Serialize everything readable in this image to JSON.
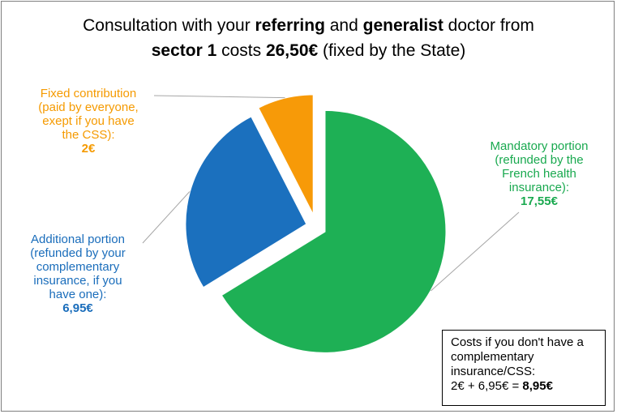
{
  "title": {
    "part1": "Consultation with your ",
    "b1": "referring",
    "part2": " and ",
    "b2": "generalist",
    "part3": " doctor from",
    "b3": "sector 1",
    "part4": " costs ",
    "b4": "26,50€",
    "part5": " (fixed by the State)"
  },
  "chart_data": {
    "type": "pie",
    "total": 26.5,
    "slices": [
      {
        "id": "mandatory",
        "value": 17.55,
        "color": "#1eb055",
        "label_lines": [
          "Mandatory portion",
          "(refunded by the",
          "French health",
          "insurance):"
        ],
        "value_label": "17,55€",
        "label_color": "#19a94f"
      },
      {
        "id": "additional",
        "value": 6.95,
        "color": "#1b70be",
        "label_lines": [
          "Additional portion",
          "(refunded by your",
          "complementary",
          "insurance, if you",
          "have one):"
        ],
        "value_label": "6,95€",
        "label_color": "#1a6dbb"
      },
      {
        "id": "fixed",
        "value": 2,
        "color": "#f79a08",
        "label_lines": [
          "Fixed contribution",
          "(paid by everyone,",
          "exept if you have",
          "the CSS):"
        ],
        "value_label": "2€",
        "label_color": "#f59a00"
      }
    ]
  },
  "note": {
    "lines": [
      "Costs if you don't have a",
      "complementary",
      "insurance/CSS:"
    ],
    "formula": "2€ + 6,95€ = ",
    "result": "8,95€"
  }
}
